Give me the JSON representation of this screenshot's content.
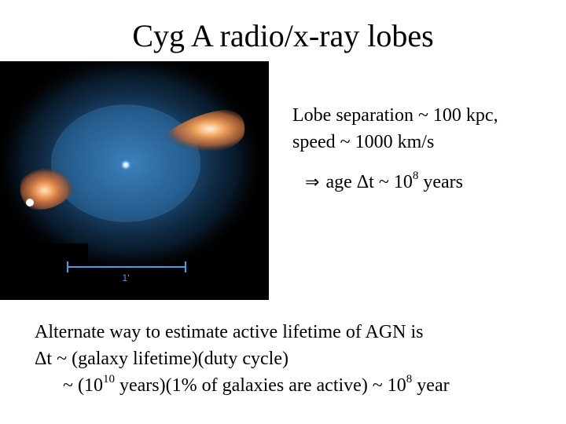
{
  "slide": {
    "title": "Cyg A radio/x-ray lobes"
  },
  "figure": {
    "scale_bar_label": "1'",
    "colors": {
      "background": "#000000",
      "xray_halo": "#2f7fc4",
      "radio_lobe": "#e0844a",
      "core": "#bfe6ff",
      "scale_bar": "#3fa0f0"
    }
  },
  "text": {
    "separation": "Lobe separation ~ 100 kpc,",
    "speed": "speed ~ 1000 km/s",
    "age_arrow": "⇒",
    "age_prefix": "age Δt ~ 10",
    "age_exp": "8",
    "age_suffix": " years",
    "alt_line1": "Alternate way to estimate active lifetime of AGN is",
    "alt_line2": "Δt ~ (galaxy lifetime)(duty cycle)",
    "alt_line3_a": "~ (10",
    "alt_line3_exp1": "10",
    "alt_line3_b": " years)(1% of galaxies are active) ~ 10",
    "alt_line3_exp2": "8",
    "alt_line3_c": " year"
  }
}
